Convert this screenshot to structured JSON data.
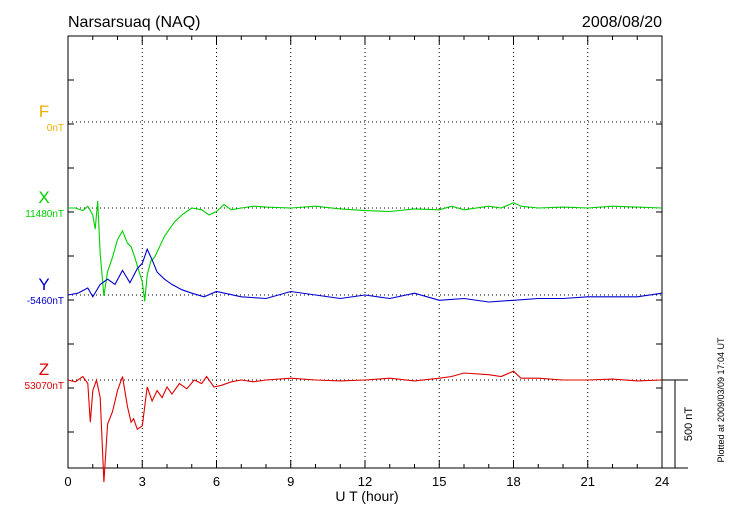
{
  "chart_data": {
    "type": "line",
    "title": "Narsarsuaq (NAQ)",
    "date": "2008/08/20",
    "xlabel": "U T (hour)",
    "xlim": [
      0,
      24
    ],
    "xticks": [
      "0",
      "3",
      "6",
      "9",
      "12",
      "15",
      "18",
      "21",
      "24"
    ],
    "scale_label": "500 nT",
    "plotted_note": "Plotted at 2009/03/09 17:04 UT",
    "grid": true,
    "colors": {
      "F": "#f0b000",
      "X": "#00d000",
      "Y": "#0000d0",
      "Z": "#e00000",
      "axis": "#000000"
    },
    "series": [
      {
        "name": "F",
        "baseline_label": "0nT",
        "x": [],
        "y": []
      },
      {
        "name": "X",
        "baseline_label": "11480nT",
        "x": [
          0,
          0.3,
          0.6,
          0.8,
          1.0,
          1.1,
          1.2,
          1.3,
          1.45,
          1.6,
          1.8,
          2.0,
          2.2,
          2.4,
          2.55,
          2.7,
          2.85,
          3.0,
          3.1,
          3.2,
          3.35,
          3.5,
          3.7,
          3.9,
          4.1,
          4.3,
          4.6,
          5.0,
          5.4,
          5.7,
          6.0,
          6.3,
          6.6,
          7.0,
          7.5,
          8,
          9,
          10,
          11,
          12,
          13,
          14,
          15,
          15.5,
          16,
          17,
          17.5,
          18,
          18.3,
          19,
          20,
          21,
          22,
          23,
          24
        ],
        "y": [
          0,
          0,
          -15,
          10,
          -40,
          -120,
          40,
          -260,
          -500,
          -360,
          -280,
          -180,
          -130,
          -200,
          -220,
          -280,
          -350,
          -420,
          -530,
          -380,
          -300,
          -280,
          -220,
          -160,
          -120,
          -80,
          -40,
          0,
          -10,
          -40,
          -20,
          20,
          -10,
          0,
          10,
          5,
          0,
          10,
          -5,
          -15,
          -20,
          -5,
          -10,
          10,
          -10,
          10,
          0,
          30,
          10,
          0,
          5,
          0,
          10,
          5,
          0
        ]
      },
      {
        "name": "Y",
        "baseline_label": "-5460nT",
        "x": [
          0,
          0.4,
          0.8,
          1.0,
          1.3,
          1.6,
          1.9,
          2.2,
          2.5,
          2.8,
          3.0,
          3.2,
          3.4,
          3.6,
          3.9,
          4.2,
          4.6,
          5.0,
          5.5,
          6.0,
          7,
          8,
          9,
          10,
          11,
          12,
          13,
          14,
          15,
          16,
          17,
          18,
          19,
          20,
          21,
          22,
          23,
          24
        ],
        "y": [
          0,
          10,
          40,
          -10,
          60,
          90,
          60,
          140,
          70,
          150,
          180,
          260,
          200,
          130,
          90,
          60,
          30,
          10,
          -10,
          20,
          -10,
          -20,
          20,
          0,
          -20,
          0,
          -20,
          10,
          -30,
          -20,
          -40,
          -30,
          -20,
          -20,
          -10,
          -10,
          -10,
          10
        ]
      },
      {
        "name": "Z",
        "baseline_label": "53070nT",
        "x": [
          0,
          0.3,
          0.6,
          0.8,
          0.9,
          1.0,
          1.15,
          1.3,
          1.45,
          1.6,
          1.8,
          2.0,
          2.2,
          2.4,
          2.55,
          2.65,
          2.8,
          3.0,
          3.2,
          3.4,
          3.6,
          3.8,
          4.0,
          4.2,
          4.5,
          4.8,
          5.1,
          5.4,
          5.6,
          5.9,
          6.2,
          6.6,
          7,
          7.5,
          8,
          9,
          10,
          11,
          12,
          13,
          14,
          15,
          15.5,
          16,
          17,
          17.5,
          18,
          18.3,
          19,
          20,
          21,
          22,
          23,
          24
        ],
        "y": [
          0,
          -10,
          20,
          -20,
          -240,
          -60,
          0,
          -100,
          -580,
          -250,
          -180,
          -60,
          20,
          -150,
          -240,
          -220,
          -280,
          -260,
          -40,
          -120,
          -60,
          -100,
          -40,
          -80,
          -20,
          -50,
          0,
          -20,
          20,
          -40,
          -30,
          -10,
          0,
          -10,
          0,
          10,
          0,
          -5,
          0,
          10,
          -5,
          10,
          20,
          40,
          30,
          20,
          50,
          10,
          10,
          0,
          0,
          5,
          -5,
          0
        ]
      }
    ]
  }
}
